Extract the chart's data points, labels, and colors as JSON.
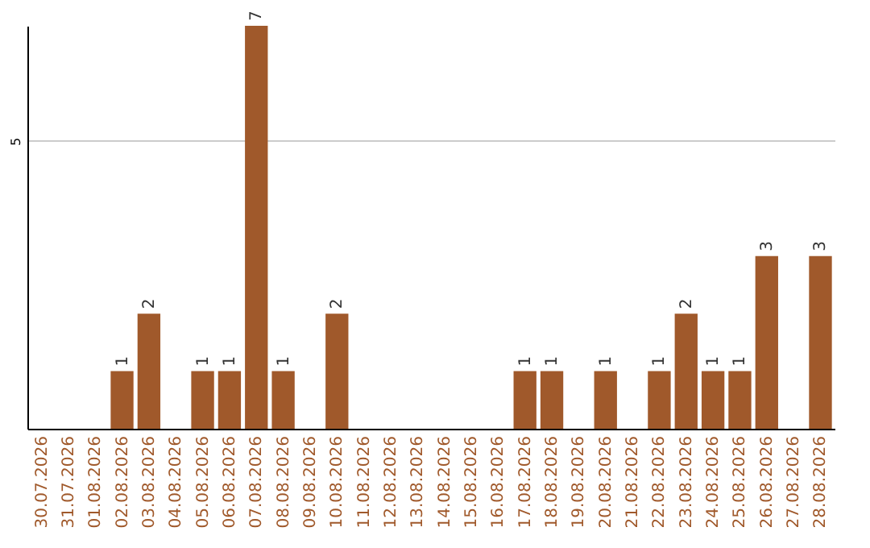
{
  "chart_data": {
    "type": "bar",
    "categories": [
      "30.07.2026",
      "31.07.2026",
      "01.08.2026",
      "02.08.2026",
      "03.08.2026",
      "04.08.2026",
      "05.08.2026",
      "06.08.2026",
      "07.08.2026",
      "08.08.2026",
      "09.08.2026",
      "10.08.2026",
      "11.08.2026",
      "12.08.2026",
      "13.08.2026",
      "14.08.2026",
      "15.08.2026",
      "16.08.2026",
      "17.08.2026",
      "18.08.2026",
      "19.08.2026",
      "20.08.2026",
      "21.08.2026",
      "22.08.2026",
      "23.08.2026",
      "24.08.2026",
      "25.08.2026",
      "26.08.2026",
      "27.08.2026",
      "28.08.2026"
    ],
    "values": [
      0,
      0,
      0,
      1,
      2,
      0,
      1,
      1,
      7,
      1,
      0,
      2,
      0,
      0,
      0,
      0,
      0,
      0,
      1,
      1,
      0,
      1,
      0,
      1,
      2,
      1,
      1,
      3,
      0,
      3
    ],
    "value_labels": [
      null,
      null,
      null,
      "1",
      "2",
      null,
      "1",
      "1",
      "7",
      "1",
      null,
      "2",
      null,
      null,
      null,
      null,
      null,
      null,
      "1",
      "1",
      null,
      "1",
      null,
      "1",
      "2",
      "1",
      "1",
      "3",
      null,
      "3"
    ],
    "color": "#a0592b",
    "ylim": [
      0,
      7
    ],
    "yticks": [
      5
    ],
    "grid": "y"
  }
}
